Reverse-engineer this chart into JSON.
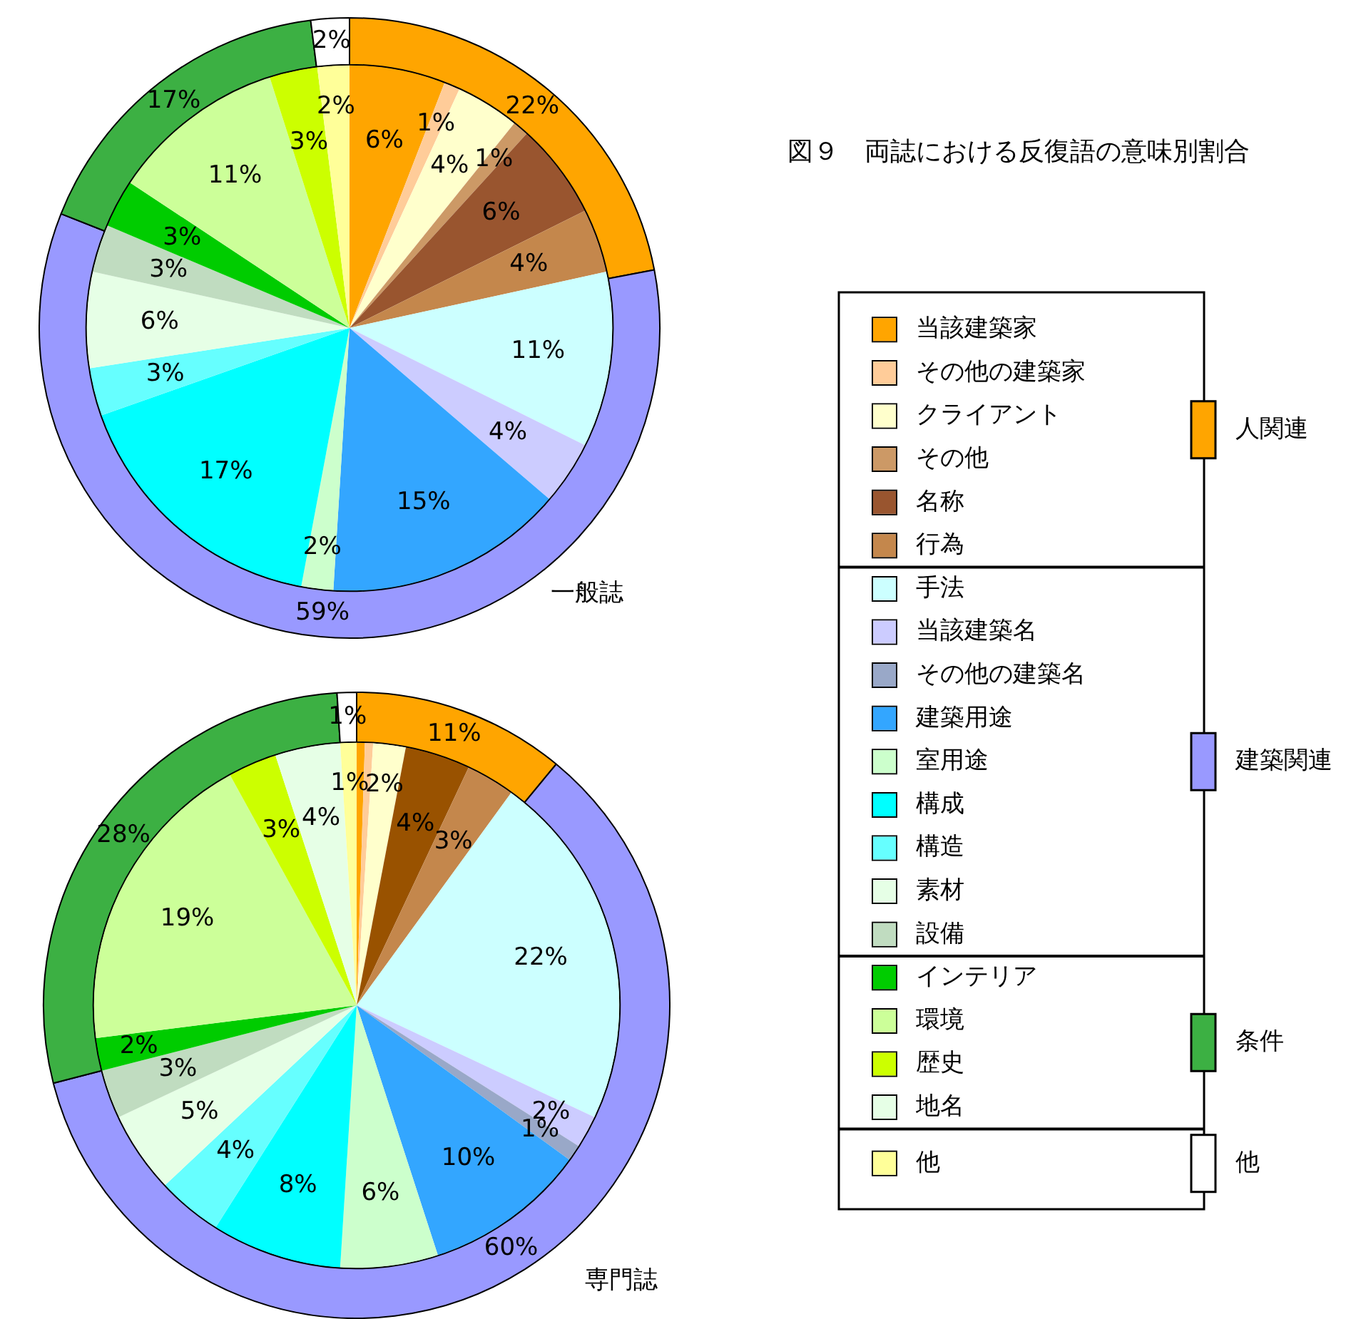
{
  "chart_data": [
    {
      "type": "pie",
      "title": "図９　両誌における反復語の意味別割合",
      "annotations": [
        "一般誌"
      ],
      "legend": "right",
      "categories": [
        "当該建築家",
        "その他の建築家",
        "クライアント",
        "その他",
        "名称",
        "行為",
        "手法",
        "当該建築名",
        "その他の建築名",
        "建築用途",
        "室用途",
        "構成",
        "構造",
        "素材",
        "設備",
        "インテリア",
        "環境",
        "歴史",
        "地名",
        "他"
      ],
      "values": [
        6,
        1,
        4,
        1,
        6,
        4,
        11,
        4,
        0,
        15,
        2,
        17,
        3,
        6,
        3,
        3,
        11,
        3,
        0,
        2
      ],
      "value_labels": [
        "6%",
        "1%",
        "4%",
        "1%",
        "6%",
        "4%",
        "11%",
        "4%",
        null,
        "15%",
        "2%",
        "17%",
        "3%",
        "6%",
        "3%",
        "3%",
        "11%",
        "3%",
        null,
        "2%"
      ],
      "colors": [
        "#ffa500",
        "#ffcc99",
        "#ffffcc",
        "#cc9966",
        "#99552f",
        "#c4874c",
        "#ccffff",
        "#ccccff",
        "#99a8c8",
        "#33a6ff",
        "#ccffcc",
        "#00ffff",
        "#66ffff",
        "#e6ffe6",
        "#c0dcc0",
        "#00cc00",
        "#ccff99",
        "#ccff00",
        "#e6ffe6",
        "#ffff99"
      ]
    },
    {
      "type": "donut",
      "legend": "right",
      "categories": [
        "人関連",
        "建築関連",
        "条件",
        "他"
      ],
      "values": [
        22,
        59,
        17,
        2
      ],
      "value_labels": [
        "22%",
        "59%",
        "17%",
        "2%"
      ],
      "colors": [
        "#ffa500",
        "#9999ff",
        "#3cb043",
        "#ffffff"
      ]
    },
    {
      "type": "pie",
      "annotations": [
        "専門誌"
      ],
      "categories": [
        null,
        null,
        null,
        null,
        null,
        null,
        null,
        null,
        null,
        null,
        null,
        null,
        null,
        null,
        null,
        null,
        null,
        null,
        null,
        null
      ],
      "values": [
        0.5,
        0.5,
        2,
        0,
        4,
        3,
        22,
        2,
        1,
        10,
        6,
        8,
        4,
        5,
        3,
        2,
        19,
        3,
        4,
        1
      ],
      "value_labels": [
        null,
        null,
        "2%",
        null,
        "4%",
        "3%",
        "22%",
        "2%",
        "1%",
        "10%",
        "6%",
        "8%",
        "4%",
        "5%",
        "3%",
        "2%",
        "19%",
        "3%",
        "4%",
        "1%"
      ],
      "colors": [
        "#ffa500",
        "#ffcc99",
        "#ffffcc",
        "#cc9966",
        "#995200",
        "#c4874c",
        "#ccffff",
        "#ccccff",
        "#99a8c8",
        "#33a6ff",
        "#ccffcc",
        "#00ffff",
        "#66ffff",
        "#e6ffe6",
        "#c0dcc0",
        "#00cc00",
        "#ccff99",
        "#ccff00",
        "#e6ffe6",
        "#ffff99"
      ]
    },
    {
      "type": "donut",
      "categories": [
        null,
        null,
        null,
        null
      ],
      "values": [
        11,
        60,
        28,
        1
      ],
      "value_labels": [
        "11%",
        "60%",
        "28%",
        "1%"
      ],
      "colors": [
        "#ffa500",
        "#9999ff",
        "#3cb043",
        "#ffffff"
      ]
    }
  ]
}
